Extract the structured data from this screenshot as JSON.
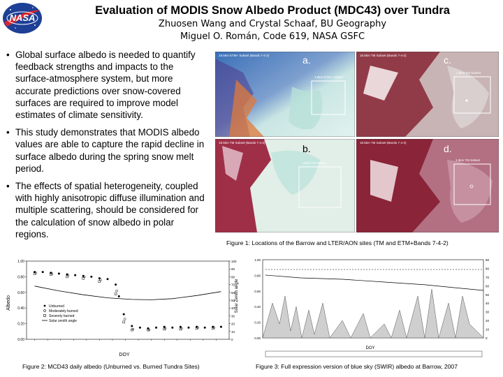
{
  "header": {
    "title": "Evaluation of MODIS Snow Albedo Product (MDC43) over Tundra",
    "authors_line1": "Zhuosen Wang and Crystal Schaaf, BU Geography",
    "authors_line2": "Miguel O. Román, Code 619, NASA GSFC",
    "logo_text": "NASA"
  },
  "bullets": [
    "Global surface albedo is needed to quantify feedback strengths and impacts to the surface-atmosphere system, but more accurate predictions over snow-covered surfaces are required to improve model estimates of climate sensitivity.",
    "This study demonstrates that MODIS albedo values are able to capture the rapid decline in surface albedo during the spring snow melt period.",
    "The effects of spatial heterogeneity, coupled with highly anisotropic diffuse illumination and multiple scattering, should be considered for the calculation of snow albedo in polar regions."
  ],
  "figure1": {
    "caption": "Figure 1: Locations of the Barrow and LTER/AON sites (TM and ETM+Bands 7-4-2)",
    "panels": [
      {
        "label": "a.",
        "caption": "18.5km ETM+ Subset (Bands 7-4-2)"
      },
      {
        "label": "c.",
        "caption": "18.5km TM Subset (Bands 7-4-2)"
      },
      {
        "label": "b.",
        "caption": "18.5km TM Subset (Bands 7-4-2)"
      },
      {
        "label": "d.",
        "caption": "18.5km TM Subset (Bands 7-4-2)"
      }
    ]
  },
  "figure2": {
    "caption": "Figure 2: MCD43 daily albedo (Unburned vs. Burned Tundra Sites)",
    "legend": [
      "Unburned",
      "Moderately burned",
      "Severely burned",
      "Solar zenith angle"
    ],
    "ylabel": "Albedo",
    "y2label": "Solar Zenith angle",
    "xlabel": "DOY"
  },
  "figure3": {
    "caption": "Figure 3: Full expression version of blue sky (SWIR) albedo at Barrow, 2007",
    "xlabel": "DOY"
  },
  "chart_data": [
    {
      "type": "scatter",
      "title": "",
      "xlabel": "DOY",
      "ylabel": "Albedo",
      "y2label": "Solar Zenith angle",
      "ylim": [
        0.0,
        1.0
      ],
      "y2lim": [
        0,
        100
      ],
      "yticks": [
        "0.00",
        "0.20",
        "0.40",
        "0.60",
        "0.80",
        "1.00"
      ],
      "y2ticks": [
        "0",
        "10",
        "20",
        "30",
        "40",
        "50",
        "60",
        "70",
        "80",
        "90",
        "100"
      ],
      "legend_position": "bottom-left",
      "series": [
        {
          "name": "Unburned",
          "points": [
            [
              100,
              0.86
            ],
            [
              105,
              0.86
            ],
            [
              110,
              0.85
            ],
            [
              115,
              0.84
            ],
            [
              120,
              0.83
            ],
            [
              125,
              0.82
            ],
            [
              130,
              0.81
            ],
            [
              135,
              0.8
            ],
            [
              140,
              0.78
            ],
            [
              145,
              0.77
            ],
            [
              150,
              0.7
            ],
            [
              152,
              0.55
            ],
            [
              155,
              0.32
            ],
            [
              160,
              0.17
            ],
            [
              165,
              0.15
            ],
            [
              170,
              0.14
            ],
            [
              175,
              0.15
            ],
            [
              180,
              0.16
            ],
            [
              185,
              0.15
            ],
            [
              190,
              0.16
            ],
            [
              195,
              0.15
            ],
            [
              200,
              0.16
            ],
            [
              205,
              0.15
            ],
            [
              210,
              0.16
            ],
            [
              215,
              0.16
            ]
          ]
        },
        {
          "name": "Moderately burned",
          "points": [
            [
              100,
              0.85
            ],
            [
              110,
              0.84
            ],
            [
              120,
              0.82
            ],
            [
              130,
              0.8
            ],
            [
              140,
              0.76
            ],
            [
              150,
              0.62
            ],
            [
              155,
              0.26
            ],
            [
              160,
              0.13
            ],
            [
              170,
              0.12
            ],
            [
              180,
              0.14
            ],
            [
              190,
              0.14
            ],
            [
              200,
              0.15
            ],
            [
              210,
              0.15
            ]
          ]
        },
        {
          "name": "Severely burned",
          "points": [
            [
              100,
              0.84
            ],
            [
              110,
              0.83
            ],
            [
              120,
              0.8
            ],
            [
              130,
              0.78
            ],
            [
              140,
              0.74
            ],
            [
              150,
              0.58
            ],
            [
              155,
              0.22
            ],
            [
              160,
              0.12
            ],
            [
              170,
              0.12
            ],
            [
              180,
              0.13
            ],
            [
              190,
              0.13
            ],
            [
              200,
              0.14
            ],
            [
              210,
              0.14
            ]
          ]
        },
        {
          "name": "Solar zenith angle",
          "line": [
            [
              100,
              68
            ],
            [
              115,
              62
            ],
            [
              130,
              57
            ],
            [
              145,
              53
            ],
            [
              160,
              51
            ],
            [
              172,
              50.5
            ],
            [
              185,
              52
            ],
            [
              200,
              56
            ],
            [
              215,
              61
            ]
          ]
        }
      ]
    },
    {
      "type": "area",
      "title": "",
      "xlabel": "DOY",
      "ylim": [
        0.0,
        1.0
      ],
      "yticks": [
        "0.00",
        "0.20",
        "0.40",
        "0.60",
        "0.80",
        "1.00"
      ],
      "y2ticks": [
        "0",
        "10",
        "20",
        "30",
        "40",
        "50",
        "60",
        "70",
        "80",
        "90"
      ],
      "legend_position": "bottom"
    }
  ]
}
